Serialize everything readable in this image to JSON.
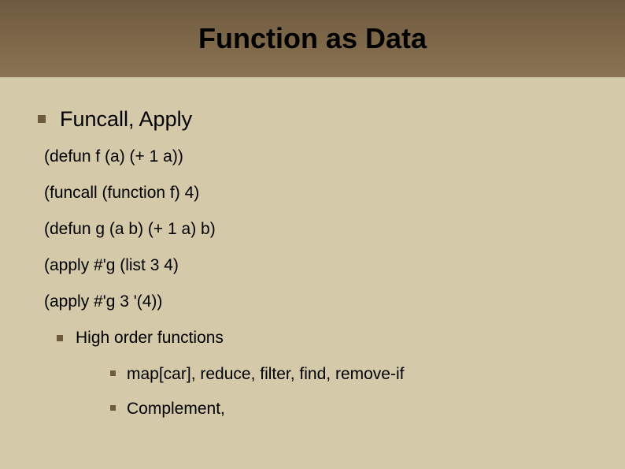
{
  "colors": {
    "band_top": "#6e5a3f",
    "band_bottom": "#8a7352",
    "background": "#d4c9a8",
    "bullet": "#6e5a3f",
    "text": "#000000"
  },
  "typography": {
    "title_fontsize": 36,
    "title_weight": "bold",
    "l1_fontsize": 27,
    "l2_fontsize": 21,
    "l3_fontsize": 21,
    "code_fontsize": 21,
    "font_family": "Arial"
  },
  "layout": {
    "slide_width": 794,
    "slide_height": 595,
    "band_height": 98
  },
  "title": "Function as Data",
  "heading_l1": "Funcall, Apply",
  "code_lines": [
    "(defun f (a) (+ 1 a))",
    "(funcall (function f) 4)",
    "(defun g (a b) (+ 1 a) b)",
    "(apply #'g (list 3 4)",
    "(apply #'g 3 '(4))"
  ],
  "heading_l2": "High order functions",
  "items_l3": [
    "map[car], reduce, filter, find, remove-if",
    "Complement,"
  ]
}
